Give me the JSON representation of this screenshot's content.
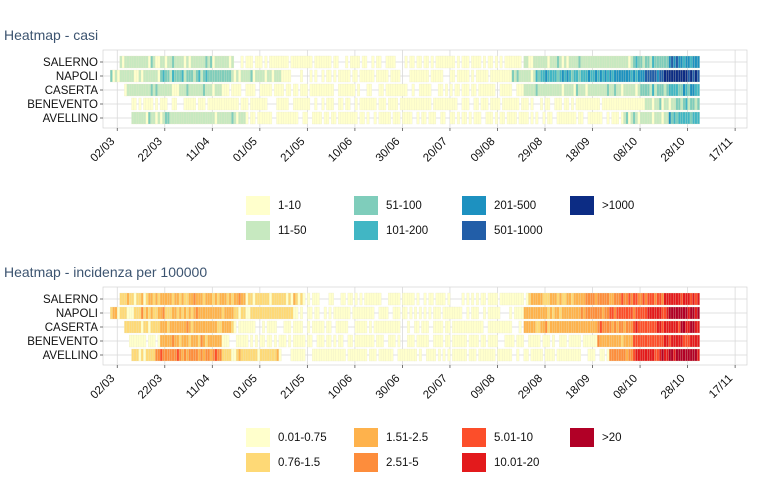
{
  "chart_data": [
    {
      "type": "heatmap",
      "title": "Heatmap - casi",
      "rows": [
        "SALERNO",
        "NAPOLI",
        "CASERTA",
        "BENEVENTO",
        "AVELLINO"
      ],
      "x_ticks": [
        "02/03",
        "22/03",
        "11/04",
        "01/05",
        "21/05",
        "10/06",
        "30/06",
        "20/07",
        "09/08",
        "29/08",
        "18/09",
        "08/10",
        "28/10",
        "17/11"
      ],
      "x_range": [
        "2020-02-25",
        "2020-11-22"
      ],
      "data_end": "2020-11-01",
      "legend": [
        {
          "label": "1-10",
          "color": "#ffffcc"
        },
        {
          "label": "11-50",
          "color": "#c7e9c0"
        },
        {
          "label": "51-100",
          "color": "#7fcdbb"
        },
        {
          "label": "101-200",
          "color": "#41b6c4"
        },
        {
          "label": "201-500",
          "color": "#1d91c0"
        },
        {
          "label": "501-1000",
          "color": "#225ea8"
        },
        {
          "label": ">1000",
          "color": "#0c2c84"
        }
      ],
      "level_profiles": {
        "SALERNO": [
          {
            "from": "2020-03-03",
            "level": 1
          },
          {
            "from": "2020-04-20",
            "level": 0
          },
          {
            "from": "2020-08-20",
            "level": 1
          },
          {
            "from": "2020-10-05",
            "level": 2
          },
          {
            "from": "2020-10-20",
            "level": 4
          }
        ],
        "NAPOLI": [
          {
            "from": "2020-02-28",
            "level": 1
          },
          {
            "from": "2020-03-20",
            "level": 2
          },
          {
            "from": "2020-04-20",
            "level": 1
          },
          {
            "from": "2020-05-10",
            "level": 0
          },
          {
            "from": "2020-08-15",
            "level": 1
          },
          {
            "from": "2020-08-25",
            "level": 3
          },
          {
            "from": "2020-09-25",
            "level": 4
          },
          {
            "from": "2020-10-10",
            "level": 5
          },
          {
            "from": "2020-10-18",
            "level": 6
          }
        ],
        "CASERTA": [
          {
            "from": "2020-03-05",
            "level": 1
          },
          {
            "from": "2020-04-15",
            "level": 0
          },
          {
            "from": "2020-08-20",
            "level": 1
          },
          {
            "from": "2020-10-08",
            "level": 2
          },
          {
            "from": "2020-10-20",
            "level": 3
          }
        ],
        "BENEVENTO": [
          {
            "from": "2020-03-06",
            "level": 0
          },
          {
            "from": "2020-10-10",
            "level": 1
          },
          {
            "from": "2020-10-22",
            "level": 2
          }
        ],
        "AVELLINO": [
          {
            "from": "2020-03-08",
            "level": 1
          },
          {
            "from": "2020-04-25",
            "level": 0
          },
          {
            "from": "2020-10-01",
            "level": 1
          },
          {
            "from": "2020-10-20",
            "level": 3
          }
        ]
      }
    },
    {
      "type": "heatmap",
      "title": "Heatmap - incidenza per 100000",
      "rows": [
        "SALERNO",
        "NAPOLI",
        "CASERTA",
        "BENEVENTO",
        "AVELLINO"
      ],
      "x_ticks": [
        "02/03",
        "22/03",
        "11/04",
        "01/05",
        "21/05",
        "10/06",
        "30/06",
        "20/07",
        "09/08",
        "29/08",
        "18/09",
        "08/10",
        "28/10",
        "17/11"
      ],
      "x_range": [
        "2020-02-25",
        "2020-11-22"
      ],
      "data_end": "2020-11-01",
      "legend": [
        {
          "label": "0.01-0.75",
          "color": "#ffffcc"
        },
        {
          "label": "0.76-1.5",
          "color": "#fed976"
        },
        {
          "label": "1.51-2.5",
          "color": "#feb24c"
        },
        {
          "label": "2.51-5",
          "color": "#fd8d3c"
        },
        {
          "label": "5.01-10",
          "color": "#fc4e2a"
        },
        {
          "label": "10.01-20",
          "color": "#e31a1c"
        },
        {
          "label": ">20",
          "color": "#b10026"
        }
      ],
      "level_profiles": {
        "SALERNO": [
          {
            "from": "2020-03-03",
            "level": 1
          },
          {
            "from": "2020-03-15",
            "level": 2
          },
          {
            "from": "2020-04-25",
            "level": 1
          },
          {
            "from": "2020-05-20",
            "level": 0
          },
          {
            "from": "2020-08-22",
            "level": 2
          },
          {
            "from": "2020-09-15",
            "level": 3
          },
          {
            "from": "2020-10-05",
            "level": 4
          },
          {
            "from": "2020-10-18",
            "level": 5
          }
        ],
        "NAPOLI": [
          {
            "from": "2020-02-28",
            "level": 1
          },
          {
            "from": "2020-03-12",
            "level": 2
          },
          {
            "from": "2020-04-20",
            "level": 1
          },
          {
            "from": "2020-05-15",
            "level": 0
          },
          {
            "from": "2020-08-20",
            "level": 2
          },
          {
            "from": "2020-09-10",
            "level": 3
          },
          {
            "from": "2020-09-25",
            "level": 4
          },
          {
            "from": "2020-10-10",
            "level": 5
          },
          {
            "from": "2020-10-20",
            "level": 6
          }
        ],
        "CASERTA": [
          {
            "from": "2020-03-05",
            "level": 1
          },
          {
            "from": "2020-03-20",
            "level": 2
          },
          {
            "from": "2020-04-20",
            "level": 0
          },
          {
            "from": "2020-08-20",
            "level": 2
          },
          {
            "from": "2020-09-20",
            "level": 3
          },
          {
            "from": "2020-10-05",
            "level": 4
          },
          {
            "from": "2020-10-15",
            "level": 5
          },
          {
            "from": "2020-10-25",
            "level": 6
          }
        ],
        "BENEVENTO": [
          {
            "from": "2020-03-06",
            "level": 0
          },
          {
            "from": "2020-03-20",
            "level": 2
          },
          {
            "from": "2020-04-15",
            "level": 0
          },
          {
            "from": "2020-09-20",
            "level": 2
          },
          {
            "from": "2020-10-05",
            "level": 4
          },
          {
            "from": "2020-10-18",
            "level": 5
          }
        ],
        "AVELLINO": [
          {
            "from": "2020-03-08",
            "level": 1
          },
          {
            "from": "2020-03-18",
            "level": 3
          },
          {
            "from": "2020-04-15",
            "level": 1
          },
          {
            "from": "2020-05-10",
            "level": 0
          },
          {
            "from": "2020-09-25",
            "level": 3
          },
          {
            "from": "2020-10-05",
            "level": 5
          },
          {
            "from": "2020-10-20",
            "level": 6
          }
        ]
      }
    }
  ]
}
